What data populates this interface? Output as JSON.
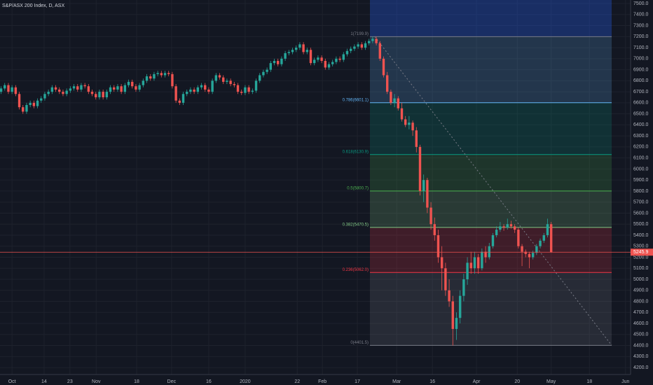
{
  "chart_data": {
    "type": "candlestick",
    "title": "S&P/ASX 200 Index, D, ASX",
    "up_color": "#26a69a",
    "down_color": "#ef5350",
    "grid": true,
    "xlim": [
      -3.3,
      169.8
    ],
    "xticks": [
      {
        "value": 0,
        "label": "Oct"
      },
      {
        "value": 8.8,
        "label": "14"
      },
      {
        "value": 15.9,
        "label": "23"
      },
      {
        "value": 23.1,
        "label": "Nov"
      },
      {
        "value": 34.2,
        "label": "18"
      },
      {
        "value": 43.8,
        "label": "Dec"
      },
      {
        "value": 54,
        "label": "16"
      },
      {
        "value": 64,
        "label": "2020"
      },
      {
        "value": 78.3,
        "label": "22"
      },
      {
        "value": 85.2,
        "label": "Feb"
      },
      {
        "value": 94.8,
        "label": "17"
      },
      {
        "value": 105.6,
        "label": "Mar"
      },
      {
        "value": 115.4,
        "label": "16"
      },
      {
        "value": 127.5,
        "label": "Apr"
      },
      {
        "value": 138.7,
        "label": "20"
      },
      {
        "value": 148,
        "label": "May"
      },
      {
        "value": 158.5,
        "label": "18"
      },
      {
        "value": 168.4,
        "label": "Jun"
      }
    ],
    "ylim": [
      4137,
      7532
    ],
    "yticks": [
      {
        "value": 4200,
        "label": "4200.0"
      },
      {
        "value": 4300,
        "label": "4300.0"
      },
      {
        "value": 4400,
        "label": "4400.0"
      },
      {
        "value": 4500,
        "label": "4500.0"
      },
      {
        "value": 4600,
        "label": "4600.0"
      },
      {
        "value": 4700,
        "label": "4700.0"
      },
      {
        "value": 4800,
        "label": "4800.0"
      },
      {
        "value": 4900,
        "label": "4900.0"
      },
      {
        "value": 5000,
        "label": "5000.0"
      },
      {
        "value": 5100,
        "label": "5100.0"
      },
      {
        "value": 5200,
        "label": "5200.0"
      },
      {
        "value": 5300,
        "label": "5300.0"
      },
      {
        "value": 5400,
        "label": "5400.0"
      },
      {
        "value": 5500,
        "label": "5500.0"
      },
      {
        "value": 5600,
        "label": "5600.0"
      },
      {
        "value": 5700,
        "label": "5700.0"
      },
      {
        "value": 5800,
        "label": "5800.0"
      },
      {
        "value": 5900,
        "label": "5900.0"
      },
      {
        "value": 6000,
        "label": "6000.0"
      },
      {
        "value": 6100,
        "label": "6100.0"
      },
      {
        "value": 6200,
        "label": "6200.0"
      },
      {
        "value": 6300,
        "label": "6300.0"
      },
      {
        "value": 6400,
        "label": "6400.0"
      },
      {
        "value": 6500,
        "label": "6500.0"
      },
      {
        "value": 6600,
        "label": "6600.0"
      },
      {
        "value": 6700,
        "label": "6700.0"
      },
      {
        "value": 6800,
        "label": "6800.0"
      },
      {
        "value": 6900,
        "label": "6900.0"
      },
      {
        "value": 7000,
        "label": "7000.0"
      },
      {
        "value": 7100,
        "label": "7100.0"
      },
      {
        "value": 7200,
        "label": "7200.0"
      },
      {
        "value": 7300,
        "label": "7300.0"
      },
      {
        "value": 7400,
        "label": "7400.0"
      },
      {
        "value": 7500,
        "label": "7500.0"
      }
    ],
    "last_price": 5245.9,
    "last_price_color": "#ef5350",
    "fib_levels": [
      {
        "label": "1(7199.9)",
        "price": 7199.9,
        "color": "#787b86"
      },
      {
        "label": "0.786(6601.1)",
        "price": 6601.1,
        "color": "#64b5f6"
      },
      {
        "label": "0.618(6130.9)",
        "price": 6130.9,
        "color": "#089981"
      },
      {
        "label": "0.5(5800.7)",
        "price": 5800.7,
        "color": "#4caf50"
      },
      {
        "label": "0.382(5470.5)",
        "price": 5470.5,
        "color": "#81c784"
      },
      {
        "label": "0.236(5062.0)",
        "price": 5062.0,
        "color": "#f23645"
      },
      {
        "label": "0(4401.5)",
        "price": 4401.5,
        "color": "#787b86"
      }
    ],
    "x_start": -3,
    "candles": [
      [
        6700,
        6750,
        6680,
        6730
      ],
      [
        6730,
        6780,
        6710,
        6760
      ],
      [
        6760,
        6780,
        6680,
        6700
      ],
      [
        6700,
        6760,
        6680,
        6740
      ],
      [
        6740,
        6760,
        6660,
        6680
      ],
      [
        6680,
        6700,
        6540,
        6560
      ],
      [
        6560,
        6580,
        6500,
        6520
      ],
      [
        6520,
        6600,
        6500,
        6580
      ],
      [
        6580,
        6620,
        6560,
        6600
      ],
      [
        6600,
        6620,
        6550,
        6570
      ],
      [
        6570,
        6640,
        6550,
        6620
      ],
      [
        6620,
        6660,
        6600,
        6640
      ],
      [
        6640,
        6700,
        6620,
        6680
      ],
      [
        6680,
        6720,
        6660,
        6700
      ],
      [
        6700,
        6760,
        6680,
        6740
      ],
      [
        6740,
        6760,
        6700,
        6720
      ],
      [
        6720,
        6740,
        6680,
        6700
      ],
      [
        6700,
        6720,
        6660,
        6680
      ],
      [
        6680,
        6730,
        6660,
        6710
      ],
      [
        6710,
        6750,
        6690,
        6730
      ],
      [
        6730,
        6770,
        6710,
        6750
      ],
      [
        6750,
        6770,
        6700,
        6720
      ],
      [
        6720,
        6780,
        6700,
        6760
      ],
      [
        6760,
        6780,
        6730,
        6750
      ],
      [
        6750,
        6770,
        6680,
        6700
      ],
      [
        6700,
        6720,
        6660,
        6680
      ],
      [
        6680,
        6700,
        6630,
        6650
      ],
      [
        6650,
        6720,
        6630,
        6700
      ],
      [
        6700,
        6720,
        6630,
        6650
      ],
      [
        6650,
        6720,
        6630,
        6700
      ],
      [
        6700,
        6760,
        6680,
        6740
      ],
      [
        6740,
        6760,
        6700,
        6720
      ],
      [
        6720,
        6770,
        6700,
        6750
      ],
      [
        6750,
        6770,
        6680,
        6700
      ],
      [
        6700,
        6780,
        6680,
        6760
      ],
      [
        6760,
        6810,
        6740,
        6790
      ],
      [
        6790,
        6810,
        6730,
        6750
      ],
      [
        6750,
        6770,
        6700,
        6720
      ],
      [
        6720,
        6780,
        6700,
        6760
      ],
      [
        6760,
        6820,
        6740,
        6800
      ],
      [
        6800,
        6860,
        6780,
        6840
      ],
      [
        6840,
        6860,
        6800,
        6820
      ],
      [
        6820,
        6880,
        6800,
        6860
      ],
      [
        6860,
        6890,
        6840,
        6870
      ],
      [
        6870,
        6890,
        6830,
        6850
      ],
      [
        6850,
        6890,
        6830,
        6870
      ],
      [
        6870,
        6890,
        6840,
        6860
      ],
      [
        6860,
        6880,
        6730,
        6750
      ],
      [
        6750,
        6770,
        6600,
        6620
      ],
      [
        6620,
        6640,
        6580,
        6600
      ],
      [
        6600,
        6700,
        6580,
        6680
      ],
      [
        6680,
        6720,
        6660,
        6700
      ],
      [
        6700,
        6740,
        6680,
        6720
      ],
      [
        6720,
        6740,
        6680,
        6700
      ],
      [
        6700,
        6760,
        6680,
        6740
      ],
      [
        6740,
        6780,
        6720,
        6760
      ],
      [
        6760,
        6780,
        6700,
        6720
      ],
      [
        6720,
        6740,
        6680,
        6700
      ],
      [
        6700,
        6820,
        6680,
        6800
      ],
      [
        6800,
        6870,
        6780,
        6850
      ],
      [
        6850,
        6870,
        6810,
        6830
      ],
      [
        6830,
        6850,
        6770,
        6790
      ],
      [
        6790,
        6820,
        6770,
        6800
      ],
      [
        6800,
        6820,
        6750,
        6770
      ],
      [
        6770,
        6790,
        6740,
        6760
      ],
      [
        6760,
        6780,
        6680,
        6700
      ],
      [
        6700,
        6720,
        6670,
        6690
      ],
      [
        6690,
        6760,
        6670,
        6740
      ],
      [
        6740,
        6760,
        6680,
        6700
      ],
      [
        6700,
        6730,
        6680,
        6710
      ],
      [
        6710,
        6820,
        6690,
        6800
      ],
      [
        6800,
        6870,
        6780,
        6850
      ],
      [
        6850,
        6900,
        6830,
        6880
      ],
      [
        6880,
        6920,
        6860,
        6900
      ],
      [
        6900,
        6980,
        6880,
        6960
      ],
      [
        6960,
        7000,
        6940,
        6980
      ],
      [
        6980,
        7000,
        6930,
        6950
      ],
      [
        6950,
        7020,
        6930,
        7000
      ],
      [
        7000,
        7070,
        6980,
        7050
      ],
      [
        7050,
        7080,
        7030,
        7060
      ],
      [
        7060,
        7100,
        7040,
        7080
      ],
      [
        7080,
        7120,
        7060,
        7100
      ],
      [
        7100,
        7150,
        7080,
        7130
      ],
      [
        7130,
        7150,
        7040,
        7060
      ],
      [
        7060,
        7100,
        7040,
        7080
      ],
      [
        7080,
        7100,
        6940,
        6960
      ],
      [
        6960,
        7010,
        6940,
        6990
      ],
      [
        6990,
        7030,
        6970,
        7010
      ],
      [
        7010,
        7030,
        6960,
        6980
      ],
      [
        6980,
        7000,
        6900,
        6920
      ],
      [
        6920,
        6970,
        6900,
        6950
      ],
      [
        6950,
        6990,
        6930,
        6970
      ],
      [
        6970,
        7020,
        6950,
        7000
      ],
      [
        7000,
        7020,
        6970,
        6990
      ],
      [
        6990,
        7060,
        6970,
        7040
      ],
      [
        7040,
        7090,
        7020,
        7070
      ],
      [
        7070,
        7110,
        7050,
        7090
      ],
      [
        7090,
        7130,
        7070,
        7110
      ],
      [
        7110,
        7150,
        7090,
        7130
      ],
      [
        7130,
        7150,
        7080,
        7100
      ],
      [
        7100,
        7160,
        7080,
        7140
      ],
      [
        7140,
        7180,
        7120,
        7160
      ],
      [
        7160,
        7200,
        7140,
        7180
      ],
      [
        7180,
        7200,
        7120,
        7140
      ],
      [
        7140,
        7160,
        6980,
        7000
      ],
      [
        7000,
        7020,
        6830,
        6850
      ],
      [
        6850,
        6880,
        6680,
        6700
      ],
      [
        6700,
        6720,
        6580,
        6600
      ],
      [
        6600,
        6680,
        6560,
        6640
      ],
      [
        6640,
        6660,
        6530,
        6550
      ],
      [
        6550,
        6600,
        6430,
        6450
      ],
      [
        6450,
        6480,
        6380,
        6400
      ],
      [
        6400,
        6480,
        6360,
        6420
      ],
      [
        6420,
        6440,
        6300,
        6350
      ],
      [
        6350,
        6380,
        6150,
        6200
      ],
      [
        6200,
        6220,
        5760,
        5800
      ],
      [
        5800,
        5950,
        5700,
        5900
      ],
      [
        5900,
        5920,
        5600,
        5650
      ],
      [
        5650,
        5700,
        5450,
        5500
      ],
      [
        5500,
        5560,
        5350,
        5400
      ],
      [
        5400,
        5450,
        5150,
        5200
      ],
      [
        5200,
        5300,
        4900,
        5100
      ],
      [
        5100,
        5150,
        4850,
        4900
      ],
      [
        4900,
        5000,
        4750,
        4800
      ],
      [
        4800,
        4850,
        4400,
        4550
      ],
      [
        4550,
        4700,
        4450,
        4650
      ],
      [
        4650,
        4900,
        4600,
        4850
      ],
      [
        4850,
        5050,
        4800,
        5000
      ],
      [
        5000,
        5200,
        4950,
        5150
      ],
      [
        5150,
        5250,
        5050,
        5100
      ],
      [
        5100,
        5250,
        5050,
        5200
      ],
      [
        5200,
        5230,
        5050,
        5100
      ],
      [
        5100,
        5280,
        5080,
        5250
      ],
      [
        5250,
        5300,
        5150,
        5200
      ],
      [
        5200,
        5330,
        5180,
        5300
      ],
      [
        5300,
        5420,
        5280,
        5400
      ],
      [
        5400,
        5480,
        5380,
        5450
      ],
      [
        5450,
        5520,
        5430,
        5480
      ],
      [
        5480,
        5500,
        5440,
        5470
      ],
      [
        5470,
        5550,
        5450,
        5500
      ],
      [
        5500,
        5530,
        5460,
        5480
      ],
      [
        5480,
        5500,
        5420,
        5450
      ],
      [
        5450,
        5470,
        5280,
        5300
      ],
      [
        5300,
        5320,
        5120,
        5250
      ],
      [
        5250,
        5270,
        5200,
        5230
      ],
      [
        5230,
        5250,
        5100,
        5200
      ],
      [
        5200,
        5260,
        5180,
        5240
      ],
      [
        5240,
        5320,
        5220,
        5300
      ],
      [
        5300,
        5370,
        5280,
        5350
      ],
      [
        5350,
        5420,
        5330,
        5400
      ],
      [
        5400,
        5550,
        5380,
        5500
      ],
      [
        5500,
        5520,
        5240,
        5246
      ]
    ]
  }
}
